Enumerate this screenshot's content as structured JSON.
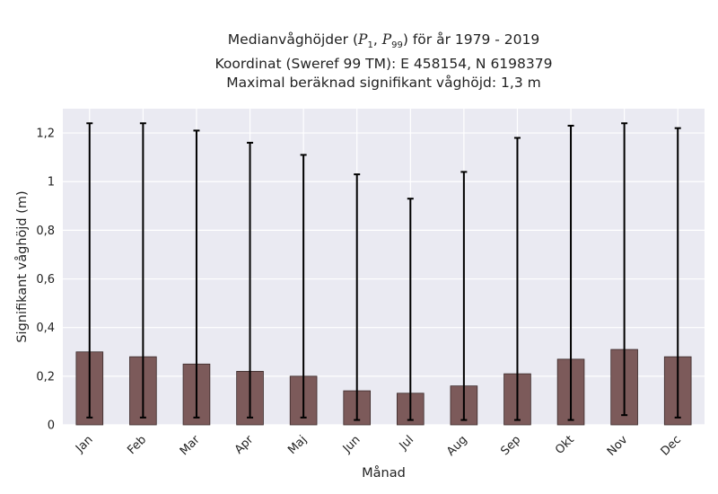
{
  "chart_data": {
    "type": "bar",
    "title_lines": [
      "Medianvåghöjder (P1, P99) för år 1979 - 2019",
      "Koordinat (Sweref 99 TM): E 458154, N 6198379",
      "Maximal beräknad signifikant våghöjd: 1,3 m"
    ],
    "title_parts": {
      "prefix": "Medianvåghöjder (",
      "p1_base": "P",
      "p1_sub": "1",
      "sep": ", ",
      "p99_base": "P",
      "p99_sub": "99",
      "suffix": ") för år 1979 - 2019"
    },
    "xlabel": "Månad",
    "ylabel": "Signifikant våghöjd (m)",
    "categories": [
      "Jan",
      "Feb",
      "Mar",
      "Apr",
      "Maj",
      "Jun",
      "Jul",
      "Aug",
      "Sep",
      "Okt",
      "Nov",
      "Dec"
    ],
    "series": [
      {
        "values": [
          0.3,
          0.28,
          0.25,
          0.22,
          0.2,
          0.14,
          0.13,
          0.16,
          0.21,
          0.27,
          0.31,
          0.28
        ],
        "error_low": [
          0.03,
          0.03,
          0.03,
          0.03,
          0.03,
          0.02,
          0.02,
          0.02,
          0.02,
          0.02,
          0.04,
          0.03
        ],
        "error_high": [
          1.24,
          1.24,
          1.21,
          1.16,
          1.11,
          1.03,
          0.93,
          1.04,
          1.18,
          1.23,
          1.24,
          1.22
        ]
      }
    ],
    "yticks": [
      0,
      0.2,
      0.4,
      0.6,
      0.8,
      1,
      1.2
    ],
    "ytick_labels": [
      "0",
      "0,2",
      "0,4",
      "0,6",
      "0,8",
      "1",
      "1,2"
    ],
    "ylim": [
      0,
      1.3
    ],
    "grid": true,
    "colors": {
      "bar": "#7c5a5a",
      "bar_edge": "#3a2a2a",
      "error": "#000000",
      "plot_bg": "#eaeaf2",
      "grid": "#ffffff"
    }
  }
}
